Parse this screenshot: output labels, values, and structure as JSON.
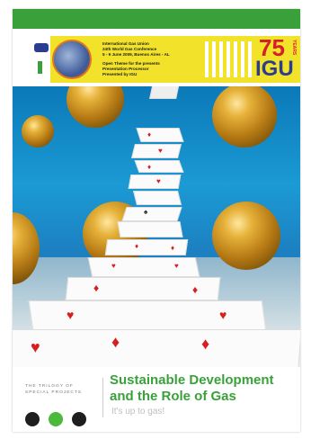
{
  "banner": {
    "lines": [
      "International Gas Union",
      "24th World Gas Conference",
      "5 - 9 June 2009, Buenos Aires - AL",
      "",
      "Open Theme for the presents",
      "Presentation Processor",
      "Presented by IGU"
    ],
    "number": "75",
    "years_label": "YEARS",
    "acronym": "IGU"
  },
  "footer": {
    "trilogy_line1": "THE TRILOGY OF",
    "trilogy_line2": "SPECIAL PROJECTS",
    "title_line1": "Sustainable Development",
    "title_line2": "and the Role of Gas",
    "subtitle": "It's up to gas!"
  },
  "colors": {
    "brand_green": "#3aa13a",
    "banner_yellow": "#f2e22a",
    "igu_red": "#d4202a",
    "igu_blue": "#2a3d8f",
    "dot_colors": [
      "#1e1e1e",
      "#4cb93a",
      "#1e1e1e"
    ]
  }
}
